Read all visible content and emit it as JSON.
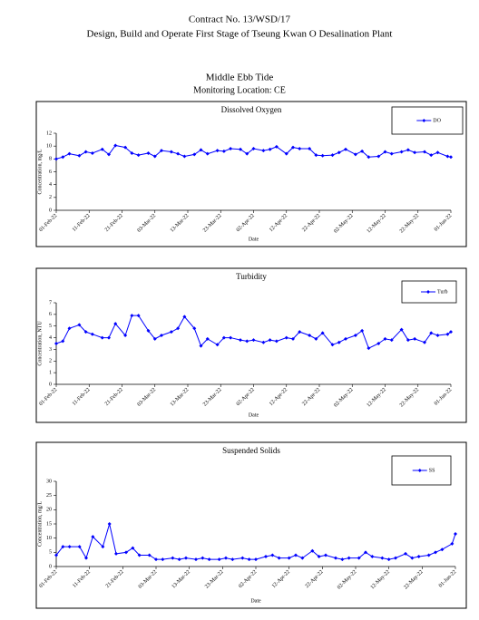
{
  "header": {
    "contract": "Contract No. 13/WSD/17",
    "project": "Design, Build and Operate First Stage of Tseung Kwan O Desalination Plant",
    "tide": "Middle Ebb Tide",
    "location": "Monitoring Location: CE"
  },
  "chart_data": [
    {
      "type": "line",
      "title": "Dissolved Oxygen",
      "x_label": "Date",
      "y_label": "Concentration, mg/L",
      "x": [
        "2022-02-01",
        "2022-02-03",
        "2022-02-05",
        "2022-02-08",
        "2022-02-10",
        "2022-02-12",
        "2022-02-15",
        "2022-02-17",
        "2022-02-19",
        "2022-02-22",
        "2022-02-24",
        "2022-02-26",
        "2022-03-01",
        "2022-03-03",
        "2022-03-05",
        "2022-03-08",
        "2022-03-10",
        "2022-03-12",
        "2022-03-15",
        "2022-03-17",
        "2022-03-19",
        "2022-03-22",
        "2022-03-24",
        "2022-03-26",
        "2022-03-29",
        "2022-03-31",
        "2022-04-02",
        "2022-04-05",
        "2022-04-07",
        "2022-04-09",
        "2022-04-12",
        "2022-04-14",
        "2022-04-16",
        "2022-04-19",
        "2022-04-21",
        "2022-04-23",
        "2022-04-26",
        "2022-04-28",
        "2022-04-30",
        "2022-05-03",
        "2022-05-05",
        "2022-05-07",
        "2022-05-10",
        "2022-05-12",
        "2022-05-14",
        "2022-05-17",
        "2022-05-19",
        "2022-05-21",
        "2022-05-24",
        "2022-05-26",
        "2022-05-28",
        "2022-05-31",
        "2022-06-01"
      ],
      "series": [
        {
          "name": "DO",
          "color": "#0000ff",
          "values": [
            8.0,
            8.3,
            8.8,
            8.5,
            9.1,
            8.9,
            9.5,
            8.7,
            10.1,
            9.8,
            8.9,
            8.6,
            8.9,
            8.4,
            9.3,
            9.1,
            8.8,
            8.4,
            8.7,
            9.4,
            8.8,
            9.3,
            9.2,
            9.6,
            9.5,
            8.8,
            9.6,
            9.3,
            9.5,
            9.9,
            8.8,
            9.8,
            9.6,
            9.6,
            8.6,
            8.5,
            8.6,
            9.0,
            9.5,
            8.7,
            9.2,
            8.3,
            8.4,
            9.1,
            8.8,
            9.1,
            9.4,
            9.0,
            9.1,
            8.6,
            9.0,
            8.4,
            8.3
          ]
        }
      ],
      "xlim": [
        "2022-02-01",
        "2022-06-01"
      ],
      "xticks": [
        {
          "value": "2022-02-01",
          "label": "01-Feb-22"
        },
        {
          "value": "2022-02-11",
          "label": "11-Feb-22"
        },
        {
          "value": "2022-02-21",
          "label": "21-Feb-22"
        },
        {
          "value": "2022-03-03",
          "label": "03-Mar-22"
        },
        {
          "value": "2022-03-13",
          "label": "13-Mar-22"
        },
        {
          "value": "2022-03-23",
          "label": "23-Mar-22"
        },
        {
          "value": "2022-04-02",
          "label": "02-Apr-22"
        },
        {
          "value": "2022-04-12",
          "label": "12-Apr-22"
        },
        {
          "value": "2022-04-22",
          "label": "22-Apr-22"
        },
        {
          "value": "2022-05-02",
          "label": "02-May-22"
        },
        {
          "value": "2022-05-12",
          "label": "12-May-22"
        },
        {
          "value": "2022-05-22",
          "label": "22-May-22"
        },
        {
          "value": "2022-06-01",
          "label": "01-Jun-22"
        }
      ],
      "ylim": [
        0,
        12
      ],
      "yticks": [
        0,
        2,
        4,
        6,
        8,
        10,
        12
      ],
      "grid": false,
      "legend": "top-right"
    },
    {
      "type": "line",
      "title": "Turbidity",
      "x_label": "Date",
      "y_label": "Concentration, NTU",
      "x": [
        "2022-02-01",
        "2022-02-03",
        "2022-02-05",
        "2022-02-08",
        "2022-02-10",
        "2022-02-12",
        "2022-02-15",
        "2022-02-17",
        "2022-02-19",
        "2022-02-22",
        "2022-02-24",
        "2022-02-26",
        "2022-03-01",
        "2022-03-03",
        "2022-03-05",
        "2022-03-08",
        "2022-03-10",
        "2022-03-12",
        "2022-03-15",
        "2022-03-17",
        "2022-03-19",
        "2022-03-22",
        "2022-03-24",
        "2022-03-26",
        "2022-03-29",
        "2022-03-31",
        "2022-04-02",
        "2022-04-05",
        "2022-04-07",
        "2022-04-09",
        "2022-04-12",
        "2022-04-14",
        "2022-04-16",
        "2022-04-19",
        "2022-04-21",
        "2022-04-23",
        "2022-04-26",
        "2022-04-28",
        "2022-04-30",
        "2022-05-03",
        "2022-05-05",
        "2022-05-07",
        "2022-05-10",
        "2022-05-12",
        "2022-05-14",
        "2022-05-17",
        "2022-05-19",
        "2022-05-21",
        "2022-05-24",
        "2022-05-26",
        "2022-05-28",
        "2022-05-31",
        "2022-06-01"
      ],
      "series": [
        {
          "name": "Turb",
          "color": "#0000ff",
          "values": [
            3.5,
            3.7,
            4.8,
            5.1,
            4.5,
            4.3,
            4.0,
            4.0,
            5.2,
            4.2,
            5.9,
            5.9,
            4.6,
            3.9,
            4.2,
            4.5,
            4.8,
            5.8,
            4.8,
            3.3,
            3.9,
            3.4,
            4.0,
            4.0,
            3.8,
            3.7,
            3.8,
            3.6,
            3.8,
            3.7,
            4.0,
            3.9,
            4.5,
            4.2,
            3.9,
            4.4,
            3.4,
            3.6,
            3.9,
            4.2,
            4.6,
            3.1,
            3.5,
            3.9,
            3.8,
            4.7,
            3.8,
            3.9,
            3.6,
            4.4,
            4.2,
            4.3,
            4.5
          ]
        }
      ],
      "xlim": [
        "2022-02-01",
        "2022-06-01"
      ],
      "xticks": [
        {
          "value": "2022-02-01",
          "label": "01-Feb-22"
        },
        {
          "value": "2022-02-11",
          "label": "11-Feb-22"
        },
        {
          "value": "2022-02-21",
          "label": "21-Feb-22"
        },
        {
          "value": "2022-03-03",
          "label": "03-Mar-22"
        },
        {
          "value": "2022-03-13",
          "label": "13-Mar-22"
        },
        {
          "value": "2022-03-23",
          "label": "23-Mar-22"
        },
        {
          "value": "2022-04-02",
          "label": "02-Apr-22"
        },
        {
          "value": "2022-04-12",
          "label": "12-Apr-22"
        },
        {
          "value": "2022-04-22",
          "label": "22-Apr-22"
        },
        {
          "value": "2022-05-02",
          "label": "02-May-22"
        },
        {
          "value": "2022-05-12",
          "label": "12-May-22"
        },
        {
          "value": "2022-05-22",
          "label": "22-May-22"
        },
        {
          "value": "2022-06-01",
          "label": "01-Jun-22"
        }
      ],
      "ylim": [
        0,
        7
      ],
      "yticks": [
        0,
        1,
        2,
        3,
        4,
        5,
        6,
        7
      ],
      "grid": false,
      "legend": "top-right"
    },
    {
      "type": "line",
      "title": "Suspended Solids",
      "x_label": "Date",
      "y_label": "Concentration, mg/L",
      "x": [
        "2022-02-01",
        "2022-02-03",
        "2022-02-05",
        "2022-02-08",
        "2022-02-10",
        "2022-02-12",
        "2022-02-15",
        "2022-02-17",
        "2022-02-19",
        "2022-02-22",
        "2022-02-24",
        "2022-02-26",
        "2022-03-01",
        "2022-03-03",
        "2022-03-05",
        "2022-03-08",
        "2022-03-10",
        "2022-03-12",
        "2022-03-15",
        "2022-03-17",
        "2022-03-19",
        "2022-03-22",
        "2022-03-24",
        "2022-03-26",
        "2022-03-29",
        "2022-03-31",
        "2022-04-02",
        "2022-04-05",
        "2022-04-07",
        "2022-04-09",
        "2022-04-12",
        "2022-04-14",
        "2022-04-16",
        "2022-04-19",
        "2022-04-21",
        "2022-04-23",
        "2022-04-26",
        "2022-04-28",
        "2022-04-30",
        "2022-05-03",
        "2022-05-05",
        "2022-05-07",
        "2022-05-10",
        "2022-05-12",
        "2022-05-14",
        "2022-05-17",
        "2022-05-19",
        "2022-05-21",
        "2022-05-24",
        "2022-05-26",
        "2022-05-28",
        "2022-05-31",
        "2022-06-01"
      ],
      "series": [
        {
          "name": "SS",
          "color": "#0000ff",
          "values": [
            4,
            7,
            7,
            7,
            3,
            10.5,
            7,
            15,
            4.5,
            5,
            6.5,
            4,
            4,
            2.5,
            2.5,
            3,
            2.5,
            3,
            2.5,
            3,
            2.5,
            2.5,
            3,
            2.5,
            3,
            2.5,
            2.5,
            3.5,
            4,
            3,
            3,
            4,
            3,
            5.5,
            3.5,
            4,
            3,
            2.5,
            3,
            3,
            5,
            3.5,
            3,
            2.5,
            3,
            4.5,
            3,
            3.5,
            4,
            5,
            6,
            8,
            11.5
          ]
        }
      ],
      "xlim": [
        "2022-02-01",
        "2022-06-01"
      ],
      "xticks": [
        {
          "value": "2022-02-01",
          "label": "01-Feb-22"
        },
        {
          "value": "2022-02-11",
          "label": "11-Feb-22"
        },
        {
          "value": "2022-02-21",
          "label": "21-Feb-22"
        },
        {
          "value": "2022-03-03",
          "label": "03-Mar-22"
        },
        {
          "value": "2022-03-13",
          "label": "13-Mar-22"
        },
        {
          "value": "2022-03-23",
          "label": "23-Mar-22"
        },
        {
          "value": "2022-04-02",
          "label": "02-Apr-22"
        },
        {
          "value": "2022-04-12",
          "label": "12-Apr-22"
        },
        {
          "value": "2022-04-22",
          "label": "22-Apr-22"
        },
        {
          "value": "2022-05-02",
          "label": "02-May-22"
        },
        {
          "value": "2022-05-12",
          "label": "12-May-22"
        },
        {
          "value": "2022-05-22",
          "label": "22-May-22"
        },
        {
          "value": "2022-06-01",
          "label": "01-Jun-22"
        }
      ],
      "ylim": [
        0,
        30
      ],
      "yticks": [
        0,
        5,
        10,
        15,
        20,
        25,
        30
      ],
      "grid": false,
      "legend": "top-right"
    }
  ]
}
